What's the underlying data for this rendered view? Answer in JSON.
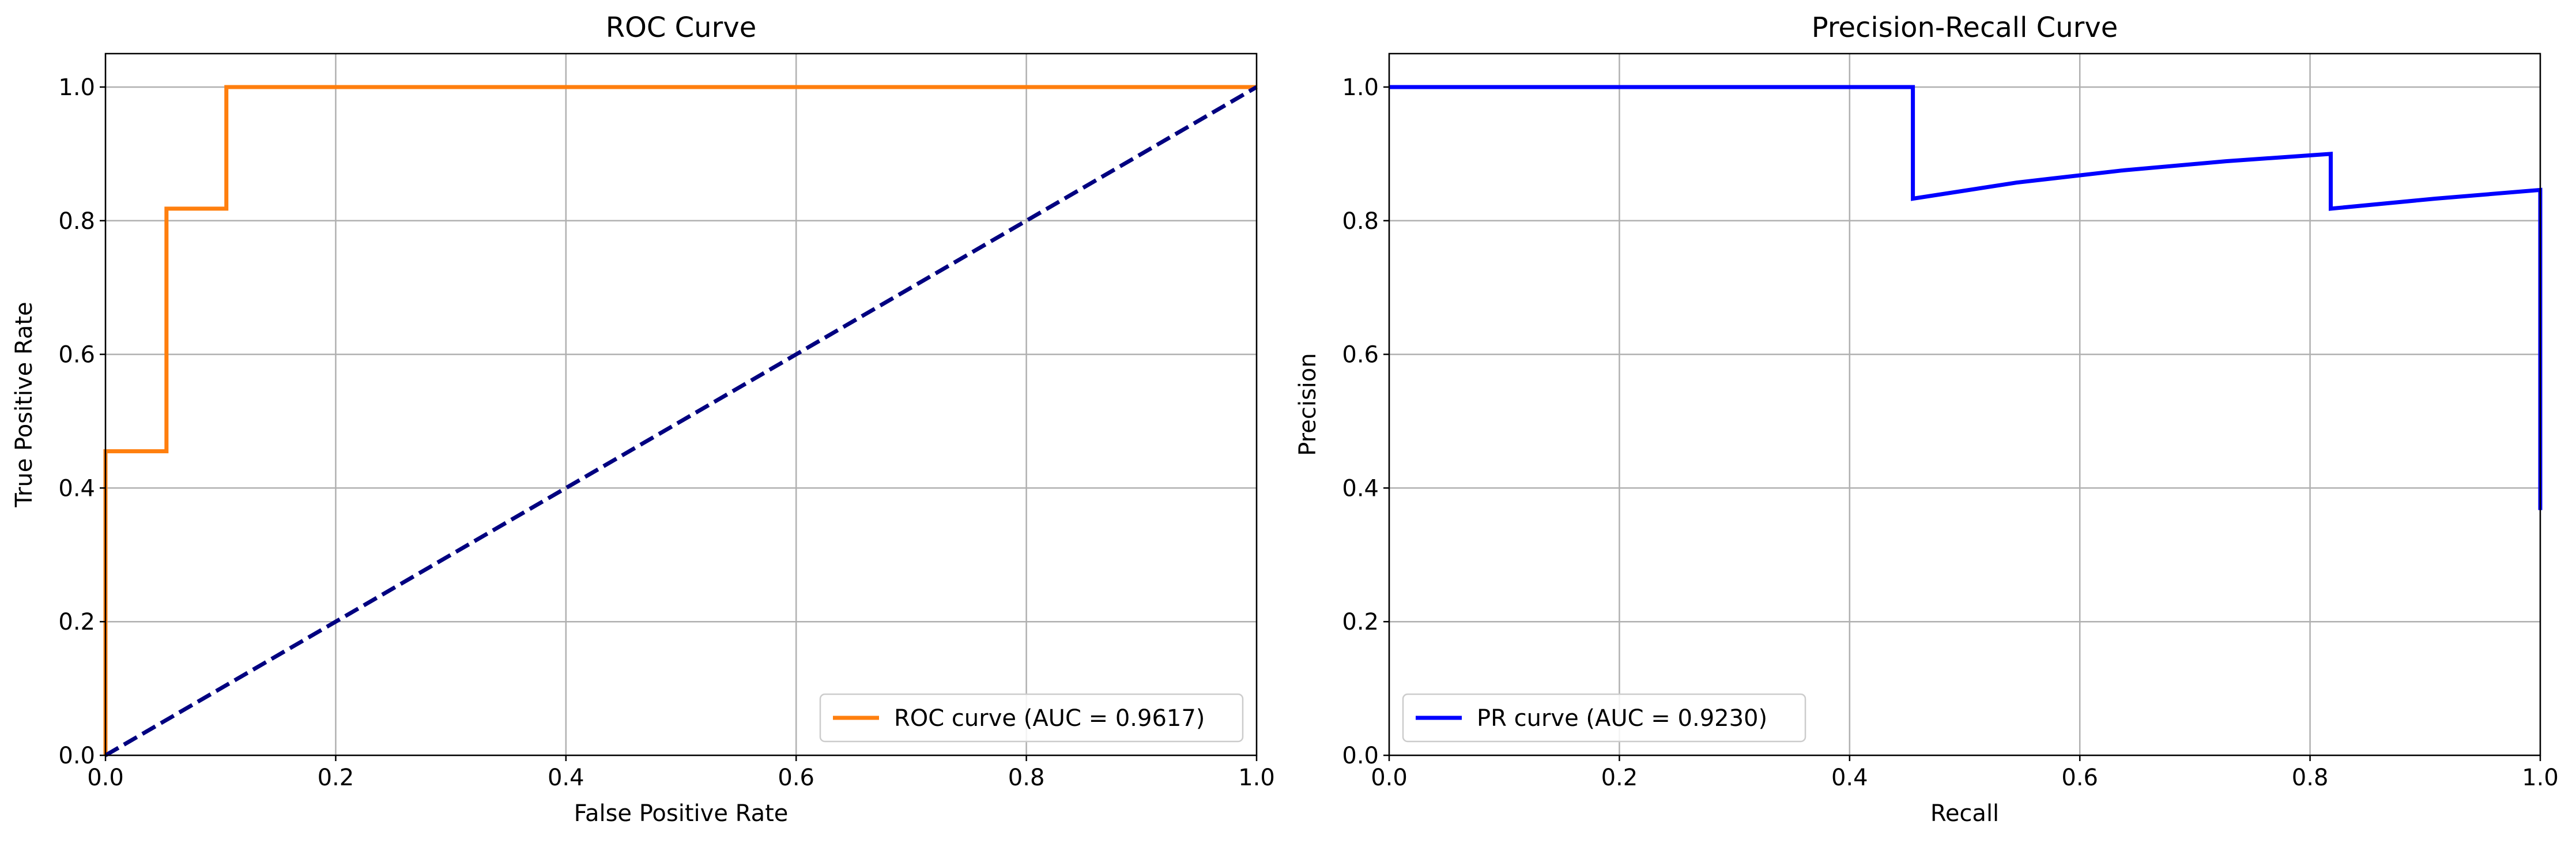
{
  "chart_data": [
    {
      "type": "line",
      "title": "ROC Curve",
      "xlabel": "False Positive Rate",
      "ylabel": "True Positive Rate",
      "xlim": [
        0.0,
        1.0
      ],
      "ylim": [
        0.0,
        1.05
      ],
      "grid": true,
      "legend_location": "lower right",
      "xticks": [
        "0.0",
        "0.2",
        "0.4",
        "0.6",
        "0.8",
        "1.0"
      ],
      "yticks": [
        "0.0",
        "0.2",
        "0.4",
        "0.6",
        "0.8",
        "1.0"
      ],
      "series": [
        {
          "name": "ROC curve (AUC = 0.9617)",
          "color": "#ff7f0e",
          "style": "solid",
          "x": [
            0.0,
            0.0,
            0.0,
            0.053,
            0.053,
            0.105,
            0.105,
            1.0
          ],
          "y": [
            0.0,
            0.091,
            0.455,
            0.455,
            0.818,
            0.818,
            1.0,
            1.0
          ]
        },
        {
          "name": "",
          "color": "#000080",
          "style": "dashed",
          "x": [
            0.0,
            1.0
          ],
          "y": [
            0.0,
            1.0
          ]
        }
      ]
    },
    {
      "type": "line",
      "title": "Precision-Recall Curve",
      "xlabel": "Recall",
      "ylabel": "Precision",
      "xlim": [
        0.0,
        1.0
      ],
      "ylim": [
        0.0,
        1.05
      ],
      "grid": true,
      "legend_location": "lower left",
      "xticks": [
        "0.0",
        "0.2",
        "0.4",
        "0.6",
        "0.8",
        "1.0"
      ],
      "yticks": [
        "0.0",
        "0.2",
        "0.4",
        "0.6",
        "0.8",
        "1.0"
      ],
      "series": [
        {
          "name": "PR curve (AUC = 0.9230)",
          "color": "#0000ff",
          "style": "solid",
          "x": [
            0.0,
            0.455,
            0.455,
            0.545,
            0.636,
            0.727,
            0.818,
            0.818,
            0.909,
            1.0,
            1.0
          ],
          "y": [
            1.0,
            1.0,
            0.833,
            0.857,
            0.875,
            0.889,
            0.9,
            0.818,
            0.833,
            0.846,
            0.367
          ]
        }
      ]
    }
  ]
}
